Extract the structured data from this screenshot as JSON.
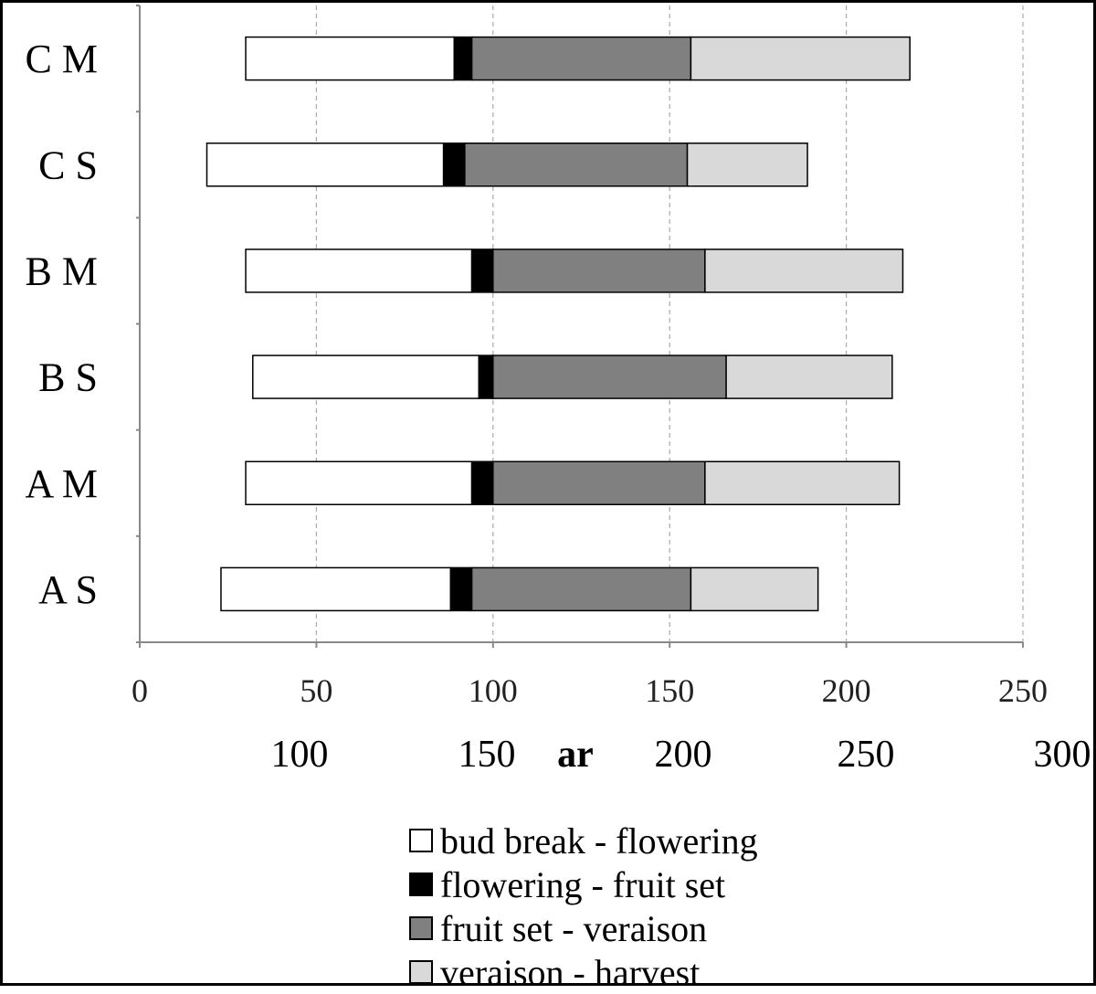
{
  "chart_data": {
    "type": "bar",
    "orientation": "horizontal",
    "stacked": true,
    "title": "",
    "xlabel": "",
    "ylabel": "",
    "categories": [
      "C M",
      "C S",
      "B M",
      "B S",
      "A M",
      "A S"
    ],
    "offsets": [
      30,
      19,
      30,
      32,
      30,
      23
    ],
    "series": [
      {
        "name": "bud break - flowering",
        "color": "#ffffff",
        "values": [
          59,
          67,
          64,
          64,
          64,
          65
        ]
      },
      {
        "name": "flowering - fruit set",
        "color": "#000000",
        "values": [
          5,
          6,
          6,
          4,
          6,
          6
        ]
      },
      {
        "name": "fruit set - veraison",
        "color": "#808080",
        "values": [
          62,
          63,
          60,
          66,
          60,
          62
        ]
      },
      {
        "name": "veraison - harvest",
        "color": "#d9d9d9",
        "values": [
          62,
          34,
          56,
          47,
          55,
          36
        ]
      }
    ],
    "xlim": [
      0,
      250
    ],
    "xticks": [
      "0",
      "50",
      "100",
      "150",
      "200",
      "250"
    ],
    "secondary_tick_labels": [
      "100",
      "150",
      "200",
      "250",
      "300"
    ],
    "stray_text": "ar",
    "grid": "vertical-dashed",
    "legend": "bottom"
  }
}
